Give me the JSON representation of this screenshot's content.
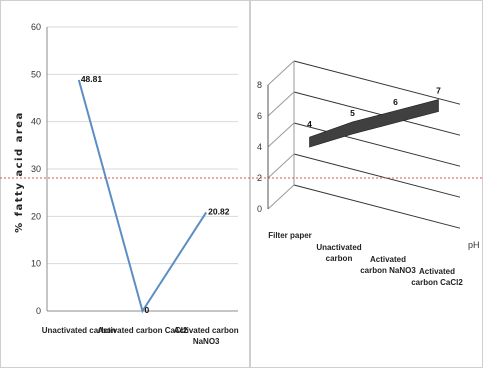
{
  "chart_data": [
    {
      "type": "line",
      "title": "",
      "xlabel": "",
      "ylabel": "% fatty acid area",
      "ylim": [
        0,
        60
      ],
      "yticks": [
        0,
        10,
        20,
        30,
        40,
        50,
        60
      ],
      "categories": [
        "Unactivated carbon",
        "Activated carbon CaCl2",
        "Activated carbon NaNO3"
      ],
      "category_lines": [
        [
          "Unactivated carbon"
        ],
        [
          "Activated carbon CaCl2"
        ],
        [
          "Activated carbon",
          "NaNO3"
        ]
      ],
      "values": [
        48.81,
        0,
        20.82
      ],
      "data_labels": [
        "48.81",
        "0",
        "20.82"
      ],
      "grid": true,
      "line_color": "#5b8ec4"
    },
    {
      "type": "line",
      "style": "3d-ribbon",
      "title": "",
      "xlabel": "",
      "ylabel": "",
      "zlabel": "pH",
      "ylim": [
        0,
        8
      ],
      "yticks": [
        0,
        2,
        4,
        6,
        8
      ],
      "categories": [
        "Filter paper",
        "Unactivated carbon",
        "Activated carbon NaNO3",
        "Activated carbon CaCl2"
      ],
      "category_lines": [
        [
          "Filter paper"
        ],
        [
          "Unactivated",
          "carbon"
        ],
        [
          "Activated",
          "carbon NaNO3"
        ],
        [
          "Activated",
          "carbon CaCl2"
        ]
      ],
      "values": [
        4,
        5,
        6,
        7
      ],
      "data_labels": [
        "4",
        "5",
        "6",
        "7"
      ],
      "grid": true,
      "ribbon_color": "#404040"
    }
  ],
  "overlay": {
    "guide_line_color": "#d9534f"
  }
}
